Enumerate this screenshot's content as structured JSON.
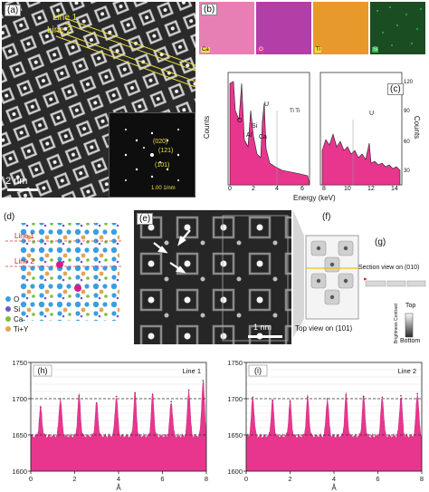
{
  "colors": {
    "pink": "#e8368f",
    "spectrum_bg": "#ffffff",
    "map_ca": "#e77fb4",
    "map_o": "#b23fa7",
    "map_ti": "#e79a2b",
    "map_si": "#2bb34a",
    "o_atom": "#3a9ee0",
    "si_atom": "#6a5acd",
    "ca_atom": "#7bbf3c",
    "tiy_atom": "#e7a352",
    "line_yellow": "#f0e442"
  },
  "panels": {
    "a": {
      "label": "(a)",
      "line1": "Line 1",
      "line2": "Line 2",
      "scale": "2 nm",
      "fft_scale": "1.00 1/nm",
      "fft_labels": [
        "(020)",
        "(121)",
        "(101)"
      ]
    },
    "b": {
      "label": "(b)",
      "maps": [
        "Ca",
        "O",
        "Ti",
        "Si"
      ]
    },
    "c": {
      "label": "(c)",
      "ylabel_left": "Counts",
      "ylabel_right": "Counts",
      "xlabel": "Energy (keV)",
      "annotations": [
        "O",
        "Al",
        "Si",
        "Ca",
        "U",
        "Ti Ti",
        "U"
      ],
      "x_ticks": [
        "0",
        "2",
        "4",
        "6",
        "8",
        "10",
        "12",
        "14"
      ],
      "y_right_ticks": [
        "30",
        "60",
        "90",
        "120"
      ]
    },
    "d": {
      "label": "(d)",
      "line1": "Line 1",
      "line2": "Line 2",
      "legend": [
        {
          "name": "O",
          "icon": "o-atom"
        },
        {
          "name": "Si",
          "icon": "si-atom"
        },
        {
          "name": "Ca",
          "icon": "ca-atom"
        },
        {
          "name": "Ti+Y",
          "icon": "tiy-atom"
        }
      ]
    },
    "e": {
      "label": "(e)",
      "scale": "1 nm"
    },
    "f": {
      "label": "(f)",
      "caption": "Top view on (101)"
    },
    "g": {
      "label": "(g)",
      "caption": "Section view on (010)",
      "bar_top": "Top",
      "bar_bottom": "Bottom",
      "bar_label": "Brightness Contrast"
    }
  },
  "chart_data": [
    {
      "type": "area",
      "panel": "(h)",
      "legend": "Line 1",
      "xlabel": "Å",
      "ylabel": "",
      "xlim": [
        0,
        8
      ],
      "ylim": [
        1600,
        1750
      ],
      "x_ticks": [
        "0",
        "2",
        "4",
        "6",
        "8"
      ],
      "y_ticks": [
        "1600",
        "1650",
        "1700",
        "1750"
      ],
      "dashed_lines": [
        1650,
        1700
      ],
      "peak_x": [
        0.45,
        1.35,
        2.2,
        3.0,
        3.9,
        4.75,
        5.55,
        6.4,
        7.2,
        7.85
      ],
      "peak_y": [
        1688,
        1700,
        1704,
        1694,
        1703,
        1708,
        1706,
        1696,
        1712,
        1725
      ],
      "baseline": 1648
    },
    {
      "type": "area",
      "panel": "(i)",
      "legend": "Line 2",
      "xlabel": "Å",
      "ylabel": "",
      "xlim": [
        0,
        8
      ],
      "ylim": [
        1600,
        1750
      ],
      "x_ticks": [
        "0",
        "2",
        "4",
        "6",
        "8"
      ],
      "y_ticks": [
        "1600",
        "1650",
        "1700",
        "1750"
      ],
      "dashed_lines": [
        1650,
        1700
      ],
      "peak_x": [
        0.3,
        1.2,
        2.0,
        2.8,
        3.7,
        4.55,
        5.35,
        6.2,
        7.05,
        7.8
      ],
      "peak_y": [
        1702,
        1698,
        1696,
        1702,
        1700,
        1705,
        1703,
        1702,
        1704,
        1707
      ],
      "baseline": 1648
    }
  ]
}
